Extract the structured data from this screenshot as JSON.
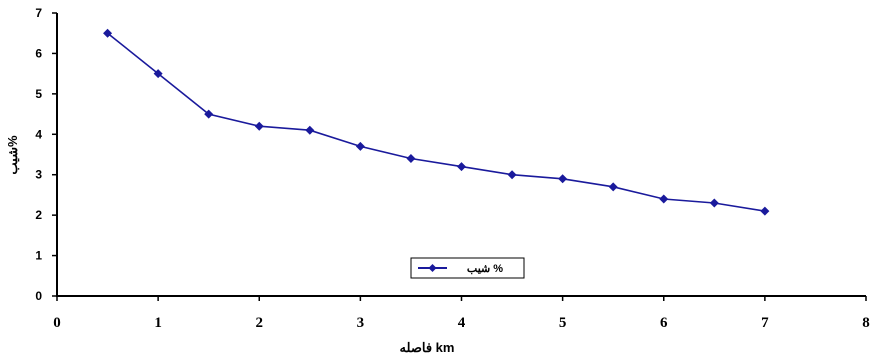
{
  "chart_data": {
    "type": "line",
    "xlabel": "فاصله km",
    "ylabel": "شیب%",
    "xlim": [
      0,
      8
    ],
    "ylim": [
      0,
      7
    ],
    "x_ticks": [
      "0",
      "1",
      "2",
      "3",
      "4",
      "5",
      "6",
      "7",
      "8"
    ],
    "y_ticks": [
      "0",
      "1",
      "2",
      "3",
      "4",
      "5",
      "6",
      "7"
    ],
    "grid": false,
    "legend_position": "bottom-center",
    "series": [
      {
        "name": "شیب %",
        "color": "#1a1a9c",
        "marker": "diamond",
        "x": [
          0.5,
          1.0,
          1.5,
          2.0,
          2.5,
          3.0,
          3.5,
          4.0,
          4.5,
          5.0,
          5.5,
          6.0,
          6.5,
          7.0
        ],
        "y": [
          6.5,
          5.5,
          4.5,
          4.2,
          4.1,
          3.7,
          3.4,
          3.2,
          3.0,
          2.9,
          2.7,
          2.4,
          2.3,
          2.1
        ]
      }
    ]
  }
}
